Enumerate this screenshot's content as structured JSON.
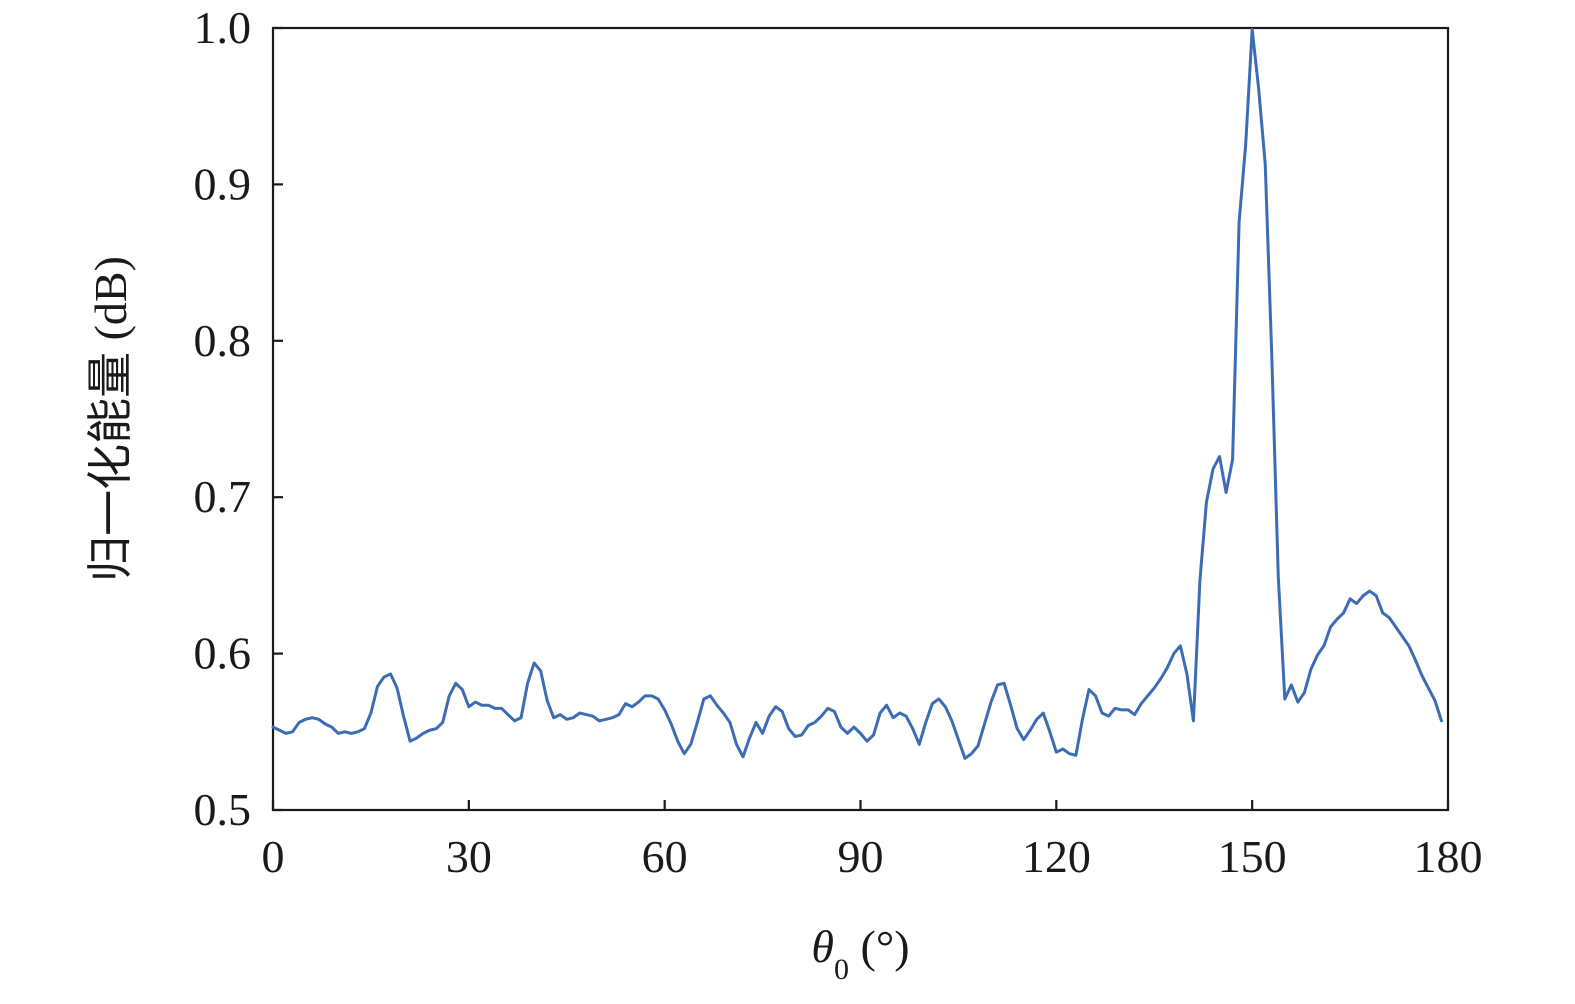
{
  "chart_data": {
    "type": "line",
    "xlabel_symbol": "θ",
    "xlabel_subscript": "0",
    "xlabel_unit": " (°)",
    "ylabel": "归一化能量 (dB)",
    "xlim": [
      0,
      180
    ],
    "ylim": [
      0.5,
      1.0
    ],
    "xticks": [
      0,
      30,
      60,
      90,
      120,
      150,
      180
    ],
    "xtick_labels": [
      "0",
      "30",
      "60",
      "90",
      "120",
      "150",
      "180"
    ],
    "yticks": [
      0.5,
      0.6,
      0.7,
      0.8,
      0.9,
      1.0
    ],
    "ytick_labels": [
      "0.5",
      "0.6",
      "0.7",
      "0.8",
      "0.9",
      "1.0"
    ],
    "grid": false,
    "line_color": "#3c6db4",
    "series": [
      {
        "x": [
          0,
          1,
          2,
          3,
          4,
          5,
          6,
          7,
          8,
          9,
          10,
          11,
          12,
          13,
          14,
          15,
          16,
          17,
          18,
          19,
          20,
          21,
          22,
          23,
          24,
          25,
          26,
          27,
          28,
          29,
          30,
          31,
          32,
          33,
          34,
          35,
          36,
          37,
          38,
          39,
          40,
          41,
          42,
          43,
          44,
          45,
          46,
          47,
          48,
          49,
          50,
          51,
          52,
          53,
          54,
          55,
          56,
          57,
          58,
          59,
          60,
          61,
          62,
          63,
          64,
          65,
          66,
          67,
          68,
          69,
          70,
          71,
          72,
          73,
          74,
          75,
          76,
          77,
          78,
          79,
          80,
          81,
          82,
          83,
          84,
          85,
          86,
          87,
          88,
          89,
          90,
          91,
          92,
          93,
          94,
          95,
          96,
          97,
          98,
          99,
          100,
          101,
          102,
          103,
          104,
          105,
          106,
          107,
          108,
          109,
          110,
          111,
          112,
          113,
          114,
          115,
          116,
          117,
          118,
          119,
          120,
          121,
          122,
          123,
          124,
          125,
          126,
          127,
          128,
          129,
          130,
          131,
          132,
          133,
          134,
          135,
          136,
          137,
          138,
          139,
          140,
          141,
          142,
          143,
          144,
          145,
          146,
          147,
          148,
          149,
          150,
          151,
          152,
          153,
          154,
          155,
          156,
          157,
          158,
          159,
          160,
          161,
          162,
          163,
          164,
          165,
          166,
          167,
          168,
          169,
          170,
          171,
          172,
          173,
          174,
          175,
          176,
          177,
          178,
          179
        ],
        "y": [
          0.553,
          0.551,
          0.549,
          0.55,
          0.556,
          0.558,
          0.559,
          0.558,
          0.555,
          0.553,
          0.549,
          0.55,
          0.549,
          0.55,
          0.552,
          0.562,
          0.579,
          0.585,
          0.587,
          0.578,
          0.56,
          0.544,
          0.546,
          0.549,
          0.551,
          0.552,
          0.556,
          0.573,
          0.581,
          0.577,
          0.566,
          0.569,
          0.567,
          0.567,
          0.565,
          0.565,
          0.561,
          0.557,
          0.559,
          0.581,
          0.594,
          0.589,
          0.57,
          0.559,
          0.561,
          0.558,
          0.559,
          0.562,
          0.561,
          0.56,
          0.557,
          0.558,
          0.559,
          0.561,
          0.568,
          0.566,
          0.569,
          0.573,
          0.573,
          0.571,
          0.564,
          0.555,
          0.544,
          0.536,
          0.542,
          0.556,
          0.571,
          0.573,
          0.567,
          0.562,
          0.556,
          0.542,
          0.534,
          0.546,
          0.556,
          0.549,
          0.56,
          0.566,
          0.563,
          0.552,
          0.547,
          0.548,
          0.554,
          0.556,
          0.56,
          0.565,
          0.563,
          0.553,
          0.549,
          0.553,
          0.549,
          0.544,
          0.548,
          0.562,
          0.567,
          0.559,
          0.562,
          0.56,
          0.552,
          0.542,
          0.556,
          0.568,
          0.571,
          0.566,
          0.557,
          0.545,
          0.533,
          0.536,
          0.541,
          0.555,
          0.569,
          0.58,
          0.581,
          0.567,
          0.552,
          0.545,
          0.551,
          0.558,
          0.562,
          0.55,
          0.537,
          0.539,
          0.536,
          0.535,
          0.558,
          0.577,
          0.573,
          0.562,
          0.56,
          0.565,
          0.564,
          0.564,
          0.561,
          0.568,
          0.573,
          0.578,
          0.584,
          0.591,
          0.6,
          0.605,
          0.587,
          0.557,
          0.647,
          0.697,
          0.718,
          0.726,
          0.703,
          0.724,
          0.876,
          0.925,
          0.999,
          0.961,
          0.913,
          0.791,
          0.649,
          0.571,
          0.58,
          0.569,
          0.575,
          0.59,
          0.599,
          0.605,
          0.617,
          0.622,
          0.626,
          0.635,
          0.632,
          0.637,
          0.64,
          0.637,
          0.626,
          0.623,
          0.617,
          0.611,
          0.605,
          0.596,
          0.586,
          0.578,
          0.57,
          0.557
        ]
      }
    ]
  }
}
